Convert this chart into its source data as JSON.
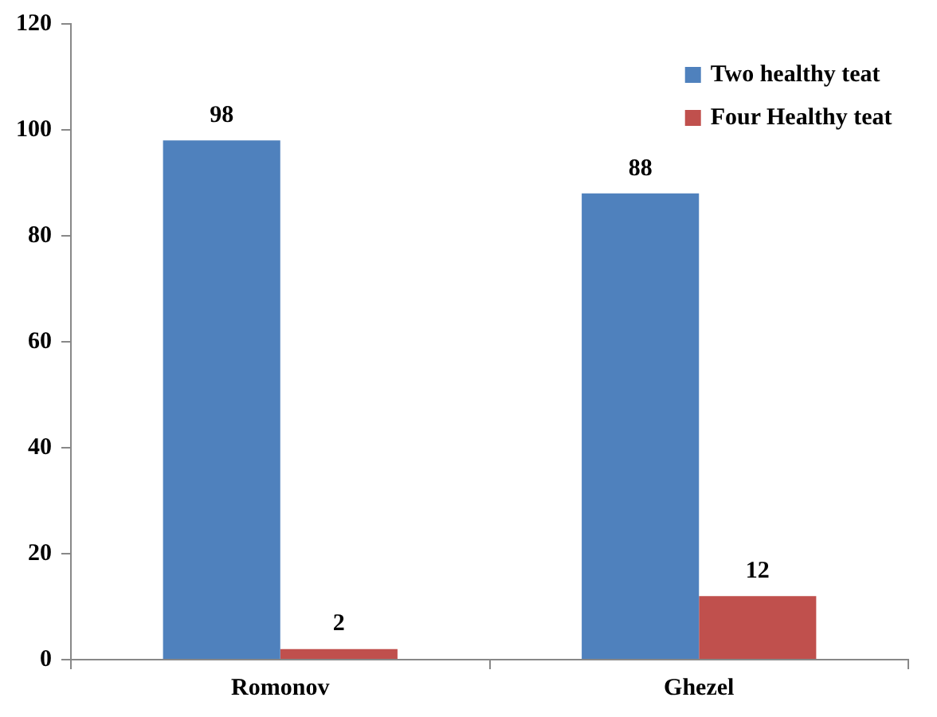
{
  "chart_data": {
    "type": "bar",
    "categories": [
      "Romonov",
      "Ghezel"
    ],
    "series": [
      {
        "name": "Two healthy teat",
        "color": "#4f81bd",
        "values": [
          98,
          88
        ]
      },
      {
        "name": "Four Healthy teat",
        "color": "#c0504d",
        "values": [
          2,
          12
        ]
      }
    ],
    "ylim": [
      0,
      120
    ],
    "yticks": [
      0,
      20,
      40,
      60,
      80,
      100,
      120
    ],
    "grid": false,
    "legend": "top right",
    "data_labels": true
  }
}
